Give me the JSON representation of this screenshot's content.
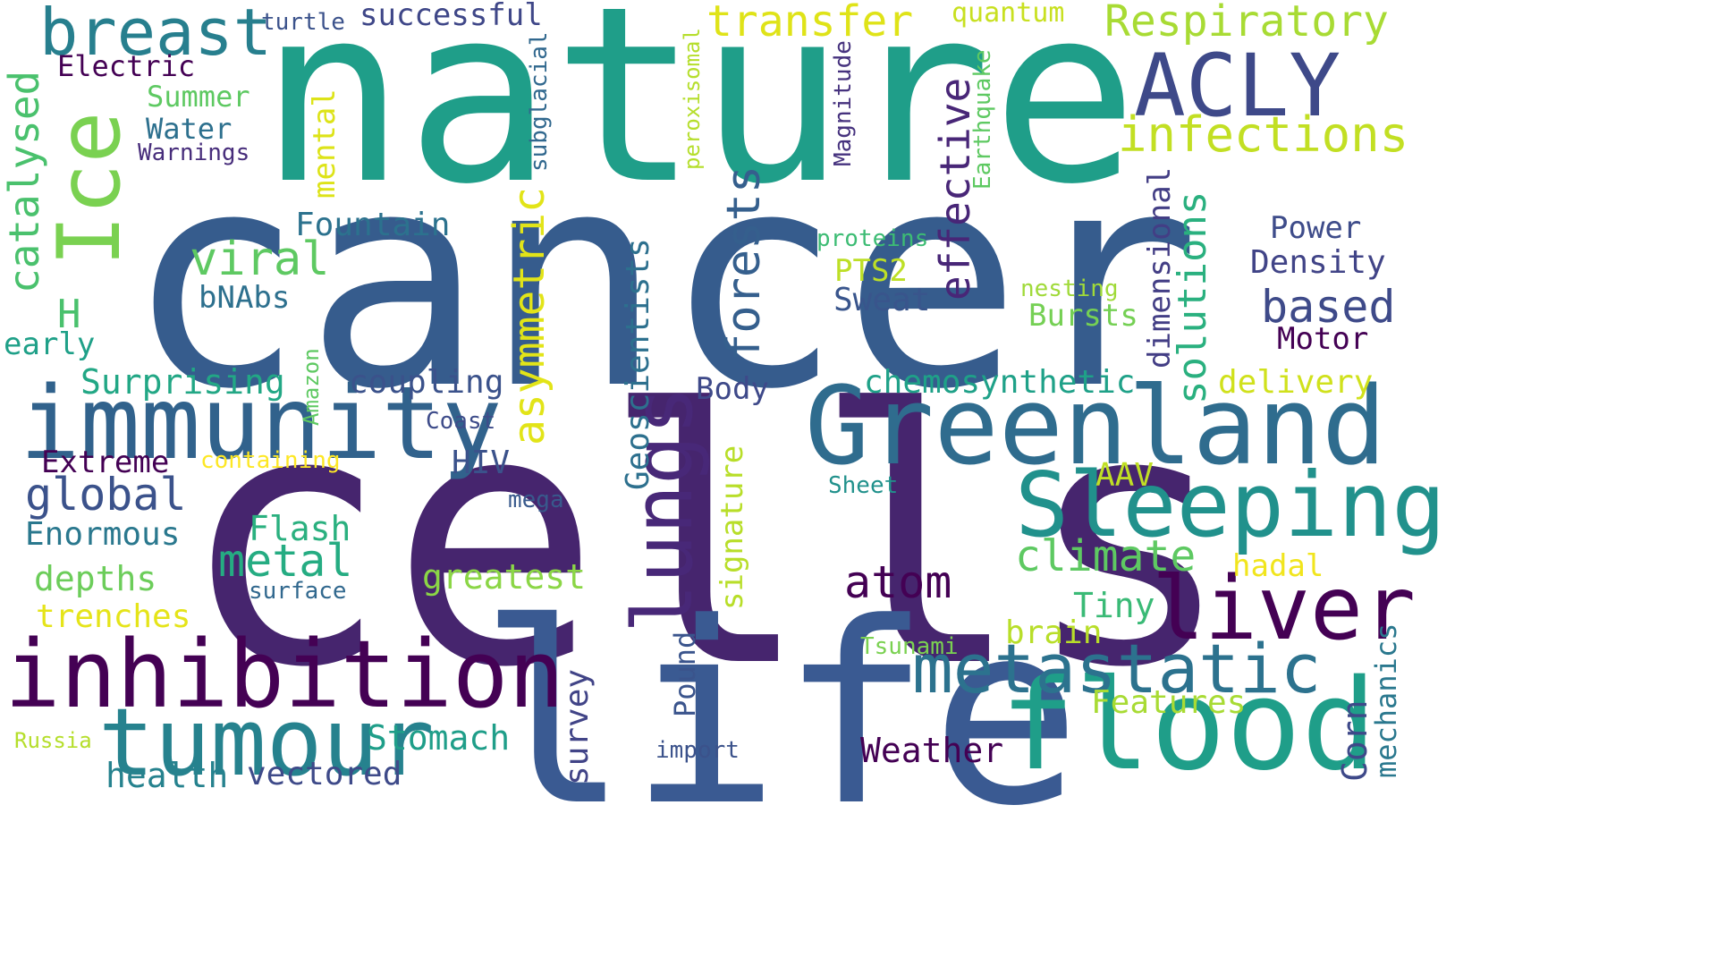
{
  "words": [
    {
      "text": "nature",
      "color": "#1f9e89"
    },
    {
      "text": "cancer",
      "color": "#365c8d"
    },
    {
      "text": "cells",
      "color": "#46256e"
    },
    {
      "text": "life",
      "color": "#3a5a92"
    },
    {
      "text": "Greenland",
      "color": "#2f6c8e"
    },
    {
      "text": "immunity",
      "color": "#31628c"
    },
    {
      "text": "inhibition",
      "color": "#440154"
    },
    {
      "text": "tumour",
      "color": "#26828e"
    },
    {
      "text": "flood",
      "color": "#1f9e89"
    },
    {
      "text": "Sleeping",
      "color": "#21918c"
    },
    {
      "text": "metastatic",
      "color": "#2c728e"
    },
    {
      "text": "liver",
      "color": "#440154"
    },
    {
      "text": "lungs",
      "color": "#482878"
    },
    {
      "text": "Ice",
      "color": "#7ad151"
    },
    {
      "text": "breast",
      "color": "#277f8e"
    },
    {
      "text": "ACLY",
      "color": "#3e4989"
    },
    {
      "text": "transfer",
      "color": "#dfe318"
    },
    {
      "text": "Respiratory",
      "color": "#a8db34"
    },
    {
      "text": "infections",
      "color": "#c2df23"
    },
    {
      "text": "successful",
      "color": "#3f4788"
    },
    {
      "text": "quantum",
      "color": "#c8e020"
    },
    {
      "text": "turtle",
      "color": "#3b528b"
    },
    {
      "text": "Electric",
      "color": "#440154"
    },
    {
      "text": "Summer",
      "color": "#5ec962"
    },
    {
      "text": "Water",
      "color": "#2d708e"
    },
    {
      "text": "Warnings",
      "color": "#472d7b"
    },
    {
      "text": "catalysed",
      "color": "#4ac16d"
    },
    {
      "text": "mental",
      "color": "#dde318"
    },
    {
      "text": "subglacial",
      "color": "#31688e"
    },
    {
      "text": "peroxisomal",
      "color": "#b5de2b"
    },
    {
      "text": "Magnitude",
      "color": "#46327e"
    },
    {
      "text": "Earthquake",
      "color": "#5ec962"
    },
    {
      "text": "effective",
      "color": "#482677"
    },
    {
      "text": "Fountain",
      "color": "#2c728e"
    },
    {
      "text": "viral",
      "color": "#5ec962"
    },
    {
      "text": "asymmetric",
      "color": "#e2e418"
    },
    {
      "text": "forests",
      "color": "#355f8d"
    },
    {
      "text": "proteins",
      "color": "#3dbc74"
    },
    {
      "text": "PTS2",
      "color": "#bddf26"
    },
    {
      "text": "Sweat",
      "color": "#39558c"
    },
    {
      "text": "dimensional",
      "color": "#433e85"
    },
    {
      "text": "solutions",
      "color": "#2ab07f"
    },
    {
      "text": "Power",
      "color": "#3e4c8a"
    },
    {
      "text": "Density",
      "color": "#414487"
    },
    {
      "text": "based",
      "color": "#3e4a89"
    },
    {
      "text": "nesting",
      "color": "#a0da39"
    },
    {
      "text": "Bursts",
      "color": "#75d054"
    },
    {
      "text": "Motor",
      "color": "#440154"
    },
    {
      "text": "H",
      "color": "#4ac16d"
    },
    {
      "text": "bNAbs",
      "color": "#2d708e"
    },
    {
      "text": "early",
      "color": "#1fa088"
    },
    {
      "text": "Surprising",
      "color": "#22a785"
    },
    {
      "text": "Amazon",
      "color": "#5ec962"
    },
    {
      "text": "coupling",
      "color": "#3b528b"
    },
    {
      "text": "Geoscientists",
      "color": "#2d708e"
    },
    {
      "text": "Body",
      "color": "#3e4989"
    },
    {
      "text": "chemosynthetic",
      "color": "#1fa188"
    },
    {
      "text": "delivery",
      "color": "#d0e11c"
    },
    {
      "text": "Coast",
      "color": "#3e4c8a"
    },
    {
      "text": "HIV",
      "color": "#3b528b"
    },
    {
      "text": "Extreme",
      "color": "#440154"
    },
    {
      "text": "containing",
      "color": "#fde725"
    },
    {
      "text": "global",
      "color": "#3b528b"
    },
    {
      "text": "signature",
      "color": "#b8de29"
    },
    {
      "text": "AAV",
      "color": "#c0df25"
    },
    {
      "text": "Sheet",
      "color": "#21918c"
    },
    {
      "text": "mega",
      "color": "#38598c"
    },
    {
      "text": "Enormous",
      "color": "#2a788e"
    },
    {
      "text": "Flash",
      "color": "#2ab07f"
    },
    {
      "text": "metal",
      "color": "#25ac82"
    },
    {
      "text": "climate",
      "color": "#5ec962"
    },
    {
      "text": "atom",
      "color": "#440154"
    },
    {
      "text": "hadal",
      "color": "#f1e51d"
    },
    {
      "text": "depths",
      "color": "#6ccd5a"
    },
    {
      "text": "greatest",
      "color": "#8bd646"
    },
    {
      "text": "surface",
      "color": "#31688e"
    },
    {
      "text": "Tiny",
      "color": "#3aba76"
    },
    {
      "text": "trenches",
      "color": "#e5e419"
    },
    {
      "text": "brain",
      "color": "#b8de29"
    },
    {
      "text": "Tsunami",
      "color": "#7ad151"
    },
    {
      "text": "mechanics",
      "color": "#2a788e"
    },
    {
      "text": "Pound",
      "color": "#3a548c"
    },
    {
      "text": "survey",
      "color": "#414487"
    },
    {
      "text": "Features",
      "color": "#a8db34"
    },
    {
      "text": "Stomach",
      "color": "#1f9e89"
    },
    {
      "text": "Russia",
      "color": "#b5de2b"
    },
    {
      "text": "import",
      "color": "#3b528b"
    },
    {
      "text": "Weather",
      "color": "#440154"
    },
    {
      "text": "Corn",
      "color": "#3e4989"
    },
    {
      "text": "health",
      "color": "#26828e"
    },
    {
      "text": "vectored",
      "color": "#3e4a89"
    }
  ]
}
